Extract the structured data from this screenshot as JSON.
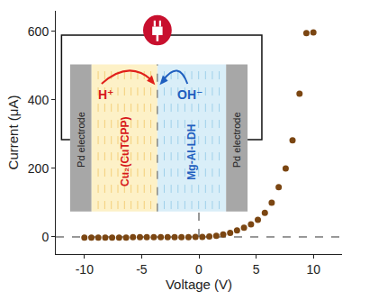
{
  "chart_data": {
    "type": "scatter",
    "x": [
      -10,
      -9.39,
      -8.79,
      -8.18,
      -7.58,
      -6.97,
      -6.36,
      -5.76,
      -5.15,
      -4.55,
      -3.94,
      -3.33,
      -2.73,
      -2.12,
      -1.52,
      -0.91,
      -0.3,
      0.3,
      0.91,
      1.52,
      2.12,
      2.73,
      3.33,
      3.94,
      4.55,
      5.15,
      5.76,
      6.36,
      6.97,
      7.58,
      8.18,
      8.79,
      9.39,
      10
    ],
    "values": [
      -2,
      -2,
      -2,
      -2,
      -2,
      -2,
      -2,
      -1,
      -1,
      -1,
      -1,
      -1,
      -1,
      -1,
      -1,
      -1,
      0,
      0,
      1,
      3,
      7,
      12,
      19,
      27,
      37,
      50,
      70,
      100,
      145,
      200,
      282,
      418,
      595,
      597
    ],
    "color": "#7b4612",
    "marker": "circle",
    "xlim": [
      -12.5,
      12.5
    ],
    "ylim": [
      -50,
      660
    ],
    "xticks": [
      -10,
      -5,
      0,
      5,
      10
    ],
    "yticks": [
      0,
      200,
      400,
      600
    ],
    "x_label": "Voltage (V)",
    "y_label": "Current (μA)",
    "grid": false,
    "annotations": [
      "Pd electrode",
      "Cu₂(CuTCPP)",
      "H⁺",
      "OH⁻",
      "Mg-Al-LDH",
      "Pd electrode"
    ]
  }
}
